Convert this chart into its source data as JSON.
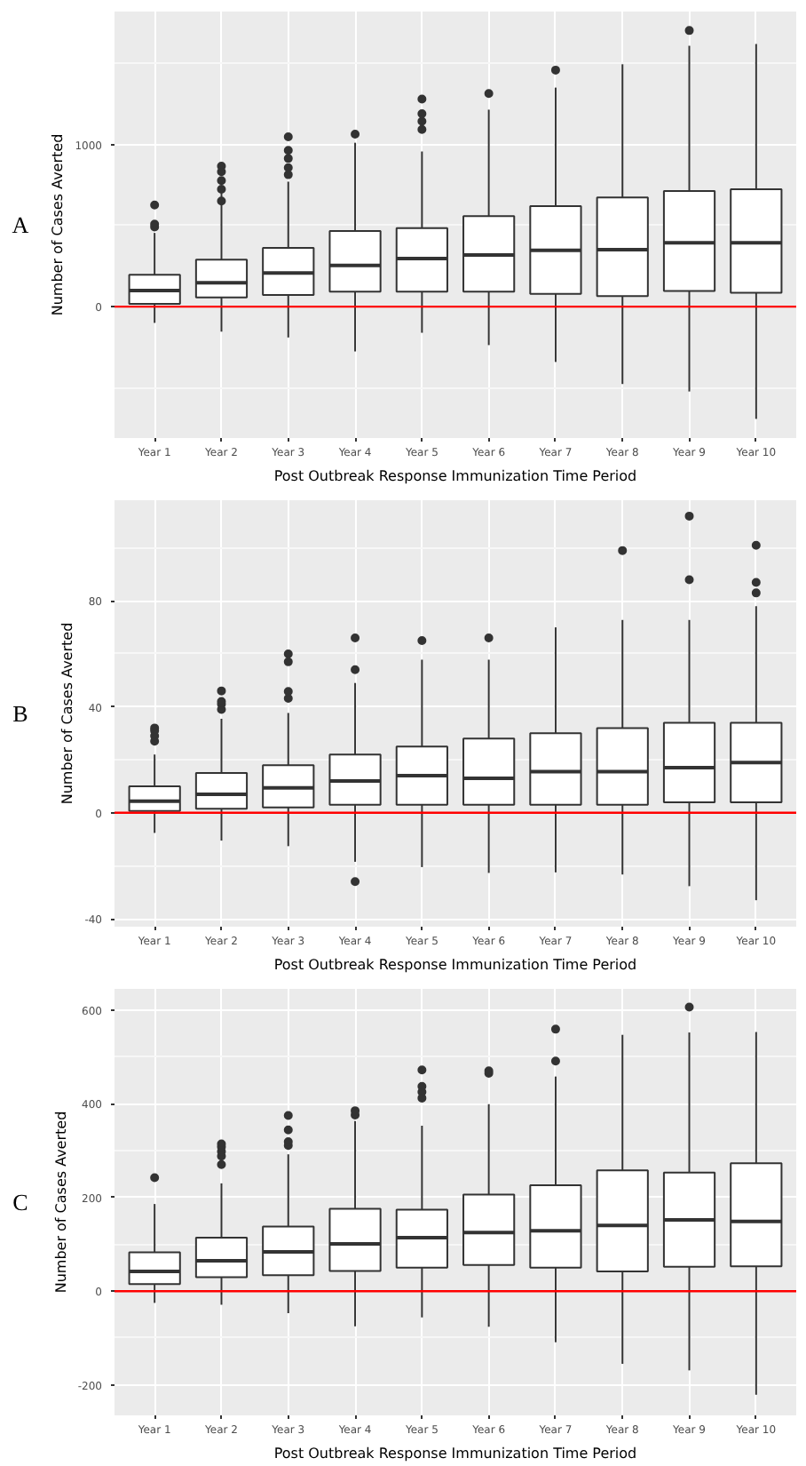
{
  "chart_data": [
    {
      "type": "box",
      "annotations": [
        "A"
      ],
      "xlabel": "Post Outbreak Response Immunization Time Period",
      "ylabel": "Number of Cases Averted",
      "categories": [
        "Year 1",
        "Year 2",
        "Year 3",
        "Year 4",
        "Year 5",
        "Year 6",
        "Year 7",
        "Year 8",
        "Year 9",
        "Year 10"
      ],
      "boxes": [
        {
          "low": -100,
          "q1": 18,
          "median": 100,
          "q3": 197,
          "high": 455,
          "outliers": [
            491,
            509,
            627
          ]
        },
        {
          "low": -154,
          "q1": 57,
          "median": 147,
          "q3": 290,
          "high": 742,
          "outliers": [
            652,
            724,
            778,
            832,
            867
          ]
        },
        {
          "low": -190,
          "q1": 72,
          "median": 208,
          "q3": 362,
          "high": 771,
          "outliers": [
            814,
            857,
            914,
            964,
            1047
          ]
        },
        {
          "low": -276,
          "q1": 93,
          "median": 254,
          "q3": 466,
          "high": 1011,
          "outliers": [
            1064
          ]
        },
        {
          "low": -161,
          "q1": 93,
          "median": 297,
          "q3": 484,
          "high": 957,
          "outliers": [
            1093,
            1143,
            1190,
            1280
          ]
        },
        {
          "low": -237,
          "q1": 93,
          "median": 319,
          "q3": 559,
          "high": 1215,
          "outliers": [
            1315
          ]
        },
        {
          "low": -341,
          "q1": 79,
          "median": 348,
          "q3": 620,
          "high": 1351,
          "outliers": [
            1459
          ]
        },
        {
          "low": -477,
          "q1": 65,
          "median": 351,
          "q3": 674,
          "high": 1495
        },
        {
          "low": -523,
          "q1": 97,
          "median": 394,
          "q3": 713,
          "high": 1609,
          "outliers": [
            1703
          ]
        },
        {
          "low": -692,
          "q1": 86,
          "median": 394,
          "q3": 724,
          "high": 1620
        }
      ],
      "ylim": [
        -810,
        1820
      ],
      "yticks": [
        0,
        1000
      ],
      "grid": true,
      "ref_lines": [
        {
          "axis": "y",
          "value": 0,
          "color": "#ff0000"
        }
      ]
    },
    {
      "type": "box",
      "annotations": [
        "B"
      ],
      "xlabel": "Post Outbreak Response Immunization Time Period",
      "ylabel": "Number of Cases Averted",
      "categories": [
        "Year 1",
        "Year 2",
        "Year 3",
        "Year 4",
        "Year 5",
        "Year 6",
        "Year 7",
        "Year 8",
        "Year 9",
        "Year 10"
      ],
      "boxes": [
        {
          "low": -7.6,
          "q1": 0.7,
          "median": 4.4,
          "q3": 10,
          "high": 22,
          "outliers": [
            27,
            29,
            31,
            32
          ]
        },
        {
          "low": -10.5,
          "q1": 1.5,
          "median": 7,
          "q3": 15,
          "high": 35.5,
          "outliers": [
            39,
            41,
            42,
            46
          ]
        },
        {
          "low": -12.6,
          "q1": 2,
          "median": 9.4,
          "q3": 18,
          "high": 37.7,
          "outliers": [
            43.2,
            45.8,
            57,
            60
          ]
        },
        {
          "low": -18.5,
          "q1": 3,
          "median": 12,
          "q3": 22,
          "high": 49,
          "outliers": [
            -26,
            54,
            66
          ]
        },
        {
          "low": -20.5,
          "q1": 3,
          "median": 14,
          "q3": 25,
          "high": 57.8,
          "outliers": [
            65
          ]
        },
        {
          "low": -22.7,
          "q1": 3,
          "median": 13,
          "q3": 28,
          "high": 57.8,
          "outliers": [
            66
          ]
        },
        {
          "low": -22.5,
          "q1": 3,
          "median": 15.5,
          "q3": 30,
          "high": 70
        },
        {
          "low": -23.3,
          "q1": 3,
          "median": 15.5,
          "q3": 32,
          "high": 72.8,
          "outliers": [
            99
          ]
        },
        {
          "low": -27.7,
          "q1": 4,
          "median": 17,
          "q3": 34,
          "high": 72.8,
          "outliers": [
            88,
            112
          ]
        },
        {
          "low": -33,
          "q1": 4,
          "median": 19,
          "q3": 34,
          "high": 78,
          "outliers": [
            83,
            87,
            101
          ]
        }
      ],
      "ylim": [
        -43,
        118
      ],
      "yticks": [
        -40,
        0,
        40,
        80
      ],
      "grid": true,
      "ref_lines": [
        {
          "axis": "y",
          "value": 0,
          "color": "#ff0000"
        }
      ]
    },
    {
      "type": "box",
      "annotations": [
        "C"
      ],
      "xlabel": "Post Outbreak Response Immunization Time Period",
      "ylabel": "Number of Cases Averted",
      "categories": [
        "Year 1",
        "Year 2",
        "Year 3",
        "Year 4",
        "Year 5",
        "Year 6",
        "Year 7",
        "Year 8",
        "Year 9",
        "Year 10"
      ],
      "boxes": [
        {
          "low": -25,
          "q1": 15,
          "median": 42,
          "q3": 83,
          "high": 186,
          "outliers": [
            242
          ]
        },
        {
          "low": -29,
          "q1": 30,
          "median": 65,
          "q3": 114,
          "high": 230,
          "outliers": [
            270,
            288,
            298,
            308,
            314
          ]
        },
        {
          "low": -47,
          "q1": 34,
          "median": 84,
          "q3": 138,
          "high": 292,
          "outliers": [
            311,
            319,
            344,
            375
          ]
        },
        {
          "low": -75,
          "q1": 43,
          "median": 101,
          "q3": 176,
          "high": 363,
          "outliers": [
            376,
            385
          ]
        },
        {
          "low": -56,
          "q1": 50,
          "median": 114,
          "q3": 174,
          "high": 353,
          "outliers": [
            412,
            425,
            437,
            472
          ]
        },
        {
          "low": -76,
          "q1": 56,
          "median": 125,
          "q3": 206,
          "high": 399,
          "outliers": [
            465,
            470
          ]
        },
        {
          "low": -109,
          "q1": 50,
          "median": 129,
          "q3": 226,
          "high": 458,
          "outliers": [
            491,
            559
          ]
        },
        {
          "low": -155,
          "q1": 42,
          "median": 140,
          "q3": 258,
          "high": 547
        },
        {
          "low": -169,
          "q1": 52,
          "median": 152,
          "q3": 253,
          "high": 552,
          "outliers": [
            606
          ]
        },
        {
          "low": -221,
          "q1": 53,
          "median": 149,
          "q3": 273,
          "high": 553
        }
      ],
      "ylim": [
        -265,
        645
      ],
      "yticks": [
        -200,
        0,
        200,
        400,
        600
      ],
      "grid": true,
      "ref_lines": [
        {
          "axis": "y",
          "value": 0,
          "color": "#ff0000"
        }
      ]
    }
  ]
}
